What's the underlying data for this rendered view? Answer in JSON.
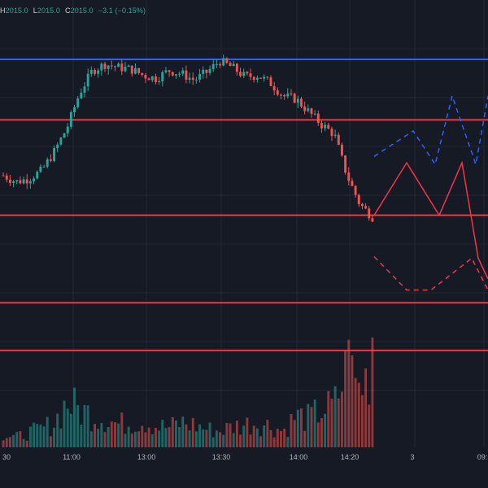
{
  "legend": {
    "high_label": "H",
    "high_value": "2015.0",
    "low_label": "L",
    "low_value": "2015.0",
    "close_label": "C",
    "close_value": "2015.0",
    "change": "−3.1 (−0.15%)"
  },
  "colors": {
    "background": "#161a25",
    "grid": "#232733",
    "up": "#26a69a",
    "down": "#ef5350",
    "horizontal_line_red": "#f23645",
    "horizontal_line_blue": "#2962ff",
    "projection_red": "#f23645",
    "projection_blue": "#2962ff",
    "axis_text": "#b2b5be"
  },
  "chart_data": {
    "type": "candlestick",
    "time_axis_labels": [
      "30",
      "11:00",
      "13:00",
      "13:30",
      "14:00",
      "14:20",
      "3",
      "09:"
    ],
    "candles_close_path": [
      2009.0,
      2008.6,
      2008.8,
      2009.3,
      2010.5,
      2012.0,
      2014.2,
      2015.6,
      2016.0,
      2015.8,
      2015.7,
      2015.3,
      2015.1,
      2015.6,
      2015.4,
      2015.0,
      2015.5,
      2016.2,
      2015.8,
      2015.2,
      2015.3,
      2014.8,
      2014.0,
      2013.8,
      2013.0,
      2012.2,
      2011.6,
      2009.0,
      2007.2,
      2006.4
    ],
    "volume_profile": [
      0.15,
      0.12,
      0.18,
      0.22,
      0.3,
      0.55,
      0.45,
      0.4,
      0.35,
      0.28,
      0.3,
      0.32,
      0.26,
      0.24,
      0.3,
      0.27,
      0.22,
      0.2,
      0.25,
      0.28,
      0.3,
      0.26,
      0.2,
      0.38,
      0.35,
      0.45,
      0.5,
      0.95,
      0.7,
      1.0
    ],
    "horizontal_levels": [
      {
        "color": "blue",
        "value": 2016.3
      },
      {
        "color": "red",
        "value": 2012.5
      },
      {
        "color": "red",
        "value": 2006.5
      },
      {
        "color": "red",
        "value": 2001.0
      },
      {
        "color": "red",
        "value": 1998.0
      }
    ],
    "projection_solid": [
      2006.5,
      2009.8,
      2006.5,
      2009.8,
      2003.8,
      2002.5
    ],
    "projection_dashed_upper": [
      2010.2,
      2011.8,
      2009.7,
      2014.0,
      2009.7,
      2014.0
    ],
    "projection_dashed_lower": [
      2003.9,
      2001.8,
      2001.8,
      2003.8,
      2001.8
    ]
  }
}
